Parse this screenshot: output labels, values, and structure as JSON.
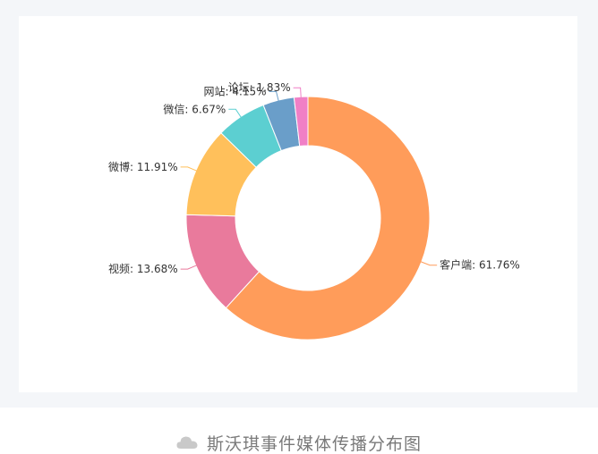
{
  "caption": {
    "text": "斯沃琪事件媒体传播分布图",
    "icon": "cloud-icon"
  },
  "chart_data": {
    "type": "pie",
    "variant": "donut",
    "title": "",
    "slices": [
      {
        "name": "客户端",
        "value": 61.76,
        "label": "客户端: 61.76%",
        "color": "#ff9c5a"
      },
      {
        "name": "视频",
        "value": 13.68,
        "label": "视频: 13.68%",
        "color": "#e97a9c"
      },
      {
        "name": "微博",
        "value": 11.91,
        "label": "微博: 11.91%",
        "color": "#ffc05b"
      },
      {
        "name": "微信",
        "value": 6.67,
        "label": "微信: 6.67%",
        "color": "#5ccfd1"
      },
      {
        "name": "网站",
        "value": 4.15,
        "label": "网站: 4.15%",
        "color": "#6a9ec9"
      },
      {
        "name": "论坛",
        "value": 1.83,
        "label": "论坛: 1.83%",
        "color": "#f07fc6"
      }
    ]
  }
}
